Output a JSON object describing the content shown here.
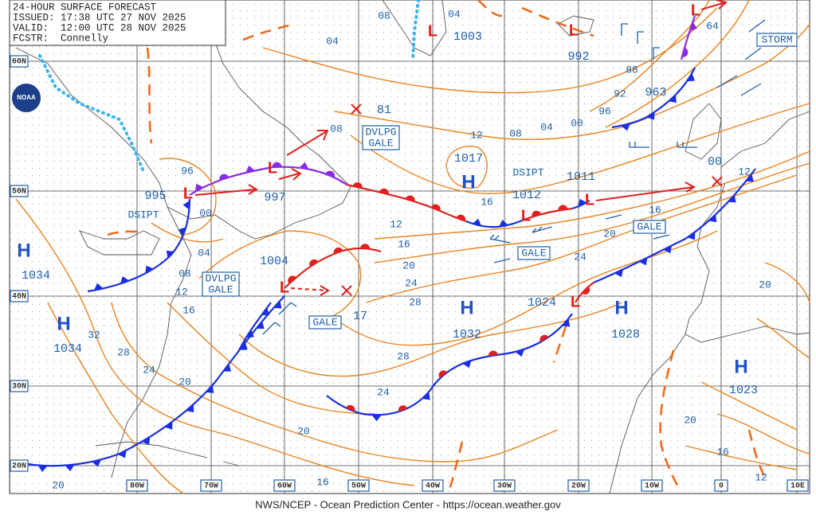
{
  "header": {
    "title": "24-HOUR SURFACE FORECAST",
    "issued": "ISSUED: 17:38 UTC 27 NOV 2025",
    "valid": "VALID:  12:00 UTC 28 NOV 2025",
    "forecaster": "FCSTR:  Connelly"
  },
  "logo": "NOAA",
  "latitude_labels": [
    "60N",
    "50N",
    "40N",
    "30N",
    "20N"
  ],
  "longitude_labels": [
    "80W",
    "70W",
    "60W",
    "50W",
    "40W",
    "30W",
    "20W",
    "10W",
    "0",
    "10E"
  ],
  "highs": [
    {
      "symbol": "H",
      "pressure": "1034"
    },
    {
      "symbol": "H",
      "pressure": "1034"
    },
    {
      "symbol": "H",
      "pressure": "1017"
    },
    {
      "symbol": "H",
      "pressure": "1032"
    },
    {
      "symbol": "H",
      "pressure": "1028"
    },
    {
      "symbol": "H",
      "pressure": "1023"
    }
  ],
  "lows": [
    {
      "symbol": "L",
      "pressure": "995"
    },
    {
      "symbol": "L",
      "pressure": "997"
    },
    {
      "symbol": "L",
      "pressure": "1004"
    },
    {
      "symbol": "L",
      "pressure": "1003"
    },
    {
      "symbol": "L",
      "pressure": "992"
    },
    {
      "symbol": "L",
      "pressure": "1012"
    },
    {
      "symbol": "L",
      "pressure": "1011"
    },
    {
      "symbol": "L",
      "pressure": "1024"
    },
    {
      "symbol": "L",
      "pressure": "64"
    }
  ],
  "other_centers": [
    "81",
    "963",
    "17",
    "00"
  ],
  "isobar_labels": [
    "08",
    "04",
    "04",
    "08",
    "96",
    "00",
    "04",
    "08",
    "12",
    "16",
    "32",
    "28",
    "24",
    "20",
    "20",
    "16",
    "20",
    "12",
    "16",
    "20",
    "24",
    "28",
    "28",
    "24",
    "12",
    "16",
    "08",
    "04",
    "00",
    "96",
    "92",
    "88",
    "16",
    "20",
    "24",
    "12",
    "20",
    "20",
    "16",
    "12"
  ],
  "warnings": [
    {
      "lines": [
        "DVLPG",
        "GALE"
      ]
    },
    {
      "lines": [
        "DVLPG",
        "GALE"
      ]
    },
    {
      "lines": [
        "GALE"
      ]
    },
    {
      "lines": [
        "GALE"
      ]
    },
    {
      "lines": [
        "GALE"
      ]
    },
    {
      "lines": [
        "STORM"
      ]
    }
  ],
  "annotations": [
    "DSIPT",
    "DSIPT"
  ],
  "footer": "NWS/NCEP - Ocean Prediction Center - https://ocean.weather.gov"
}
